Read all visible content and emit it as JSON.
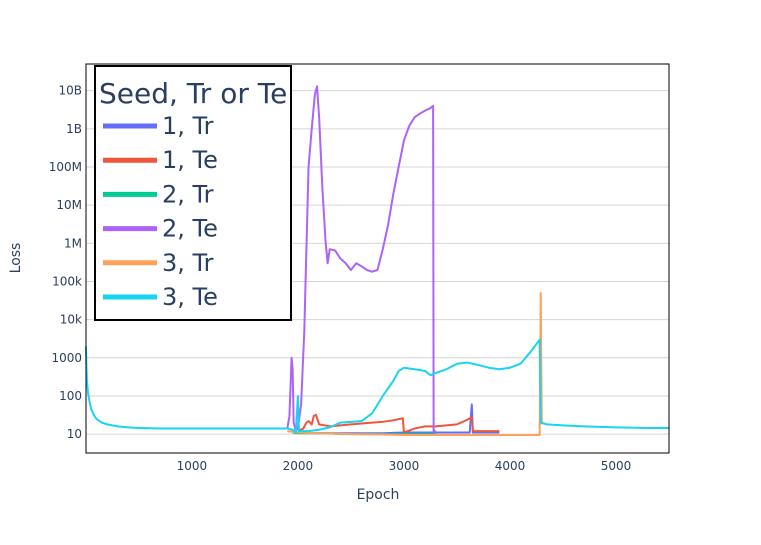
{
  "chart_data": {
    "type": "line",
    "title": "",
    "xlabel": "Epoch",
    "ylabel": "Loss",
    "y_scale": "log",
    "xlim": [
      1,
      5500
    ],
    "ylim": [
      3.2,
      50000000000
    ],
    "grid": true,
    "x_ticks": [
      1000,
      2000,
      3000,
      4000,
      5000
    ],
    "x_tick_labels": [
      "1000",
      "2000",
      "3000",
      "4000",
      "5000"
    ],
    "y_ticks": [
      10,
      100,
      1000,
      10000,
      100000,
      1000000,
      10000000,
      100000000,
      1000000000,
      10000000000
    ],
    "y_tick_labels": [
      "10",
      "100",
      "1000",
      "10k",
      "100k",
      "1M",
      "10M",
      "100M",
      "1B",
      "10B"
    ],
    "legend": {
      "title": "Seed, Tr or Te",
      "position": "top-left"
    },
    "series": [
      {
        "name": "1, Tr",
        "color": "#636efa",
        "points": [
          [
            2000,
            11
          ],
          [
            2200,
            10.5
          ],
          [
            2500,
            10.5
          ],
          [
            2800,
            10.5
          ],
          [
            3000,
            11
          ],
          [
            3200,
            11
          ],
          [
            3400,
            11
          ],
          [
            3550,
            11
          ],
          [
            3620,
            11
          ],
          [
            3640,
            60
          ],
          [
            3650,
            11
          ],
          [
            3700,
            11
          ],
          [
            3800,
            11
          ],
          [
            3900,
            11
          ]
        ]
      },
      {
        "name": "1, Te",
        "color": "#ef553b",
        "points": [
          [
            2000,
            12
          ],
          [
            2050,
            14
          ],
          [
            2080,
            20
          ],
          [
            2100,
            22
          ],
          [
            2130,
            18
          ],
          [
            2150,
            30
          ],
          [
            2170,
            32
          ],
          [
            2200,
            18
          ],
          [
            2250,
            17
          ],
          [
            2300,
            16
          ],
          [
            2400,
            17
          ],
          [
            2500,
            18
          ],
          [
            2600,
            19
          ],
          [
            2700,
            20
          ],
          [
            2800,
            21
          ],
          [
            2900,
            23
          ],
          [
            2990,
            26
          ],
          [
            3000,
            11
          ],
          [
            3100,
            14
          ],
          [
            3200,
            16
          ],
          [
            3300,
            16
          ],
          [
            3400,
            17
          ],
          [
            3500,
            18
          ],
          [
            3600,
            24
          ],
          [
            3640,
            28
          ],
          [
            3650,
            12
          ],
          [
            3700,
            12
          ],
          [
            3800,
            12
          ],
          [
            3900,
            12
          ]
        ]
      },
      {
        "name": "2, Tr",
        "color": "#00cc96",
        "points": [
          [
            1950,
            11
          ],
          [
            2000,
            10.5
          ],
          [
            2100,
            10.5
          ],
          [
            2200,
            10.5
          ],
          [
            2300,
            10.5
          ],
          [
            2400,
            10
          ],
          [
            2500,
            10
          ],
          [
            2600,
            10
          ],
          [
            2700,
            10
          ],
          [
            2800,
            10
          ],
          [
            2900,
            10
          ],
          [
            3000,
            10
          ],
          [
            3100,
            10
          ],
          [
            3200,
            10
          ],
          [
            3280,
            10
          ],
          [
            3300,
            10
          ]
        ]
      },
      {
        "name": "2, Te",
        "color": "#ab63fa",
        "points": [
          [
            1900,
            14
          ],
          [
            1920,
            30
          ],
          [
            1940,
            1000
          ],
          [
            1950,
            500
          ],
          [
            1960,
            20
          ],
          [
            1980,
            12
          ],
          [
            2000,
            15
          ],
          [
            2030,
            60
          ],
          [
            2060,
            5000
          ],
          [
            2100,
            100000000
          ],
          [
            2130,
            1000000000
          ],
          [
            2160,
            8000000000
          ],
          [
            2180,
            13000000000
          ],
          [
            2200,
            2000000000
          ],
          [
            2230,
            30000000
          ],
          [
            2260,
            1200000
          ],
          [
            2280,
            300000
          ],
          [
            2300,
            700000
          ],
          [
            2350,
            650000
          ],
          [
            2400,
            400000
          ],
          [
            2450,
            300000
          ],
          [
            2500,
            200000
          ],
          [
            2550,
            300000
          ],
          [
            2600,
            250000
          ],
          [
            2650,
            200000
          ],
          [
            2700,
            180000
          ],
          [
            2750,
            200000
          ],
          [
            2800,
            700000
          ],
          [
            2850,
            3000000
          ],
          [
            2900,
            20000000
          ],
          [
            2950,
            100000000
          ],
          [
            3000,
            500000000
          ],
          [
            3050,
            1200000000
          ],
          [
            3100,
            2000000000
          ],
          [
            3150,
            2500000000
          ],
          [
            3200,
            3000000000
          ],
          [
            3250,
            3500000000
          ],
          [
            3275,
            4000000000
          ],
          [
            3280,
            11
          ],
          [
            3290,
            12
          ],
          [
            3300,
            11.5
          ]
        ]
      },
      {
        "name": "3, Tr",
        "color": "#ffa15a",
        "points": [
          [
            1900,
            12
          ],
          [
            2000,
            11
          ],
          [
            2200,
            10.5
          ],
          [
            2500,
            10
          ],
          [
            2800,
            9.8
          ],
          [
            3000,
            9.5
          ],
          [
            3200,
            9.5
          ],
          [
            3500,
            9.5
          ],
          [
            3800,
            9.5
          ],
          [
            4000,
            9.5
          ],
          [
            4200,
            9.5
          ],
          [
            4280,
            9.5
          ],
          [
            4290,
            50000
          ],
          [
            4300,
            18
          ]
        ]
      },
      {
        "name": "3, Te",
        "color": "#19d3f3",
        "points": [
          [
            1,
            2000
          ],
          [
            5,
            600
          ],
          [
            10,
            250
          ],
          [
            20,
            120
          ],
          [
            35,
            70
          ],
          [
            50,
            45
          ],
          [
            75,
            32
          ],
          [
            100,
            25
          ],
          [
            150,
            20
          ],
          [
            200,
            18
          ],
          [
            300,
            16
          ],
          [
            400,
            15
          ],
          [
            500,
            14.5
          ],
          [
            700,
            14
          ],
          [
            1000,
            14
          ],
          [
            1500,
            14
          ],
          [
            1900,
            14
          ],
          [
            1950,
            13
          ],
          [
            1980,
            11
          ],
          [
            2000,
            100
          ],
          [
            2010,
            12
          ],
          [
            2100,
            12
          ],
          [
            2200,
            13
          ],
          [
            2300,
            15
          ],
          [
            2400,
            20
          ],
          [
            2500,
            21
          ],
          [
            2600,
            22
          ],
          [
            2700,
            35
          ],
          [
            2800,
            100
          ],
          [
            2900,
            250
          ],
          [
            2950,
            450
          ],
          [
            3000,
            550
          ],
          [
            3100,
            500
          ],
          [
            3200,
            450
          ],
          [
            3250,
            350
          ],
          [
            3300,
            400
          ],
          [
            3400,
            500
          ],
          [
            3500,
            700
          ],
          [
            3600,
            750
          ],
          [
            3700,
            650
          ],
          [
            3800,
            550
          ],
          [
            3900,
            500
          ],
          [
            4000,
            550
          ],
          [
            4100,
            700
          ],
          [
            4200,
            1500
          ],
          [
            4280,
            3000
          ],
          [
            4290,
            20
          ],
          [
            4350,
            18
          ],
          [
            4500,
            17
          ],
          [
            4700,
            16
          ],
          [
            5000,
            15
          ],
          [
            5300,
            14.5
          ],
          [
            5500,
            14.5
          ]
        ]
      }
    ]
  }
}
